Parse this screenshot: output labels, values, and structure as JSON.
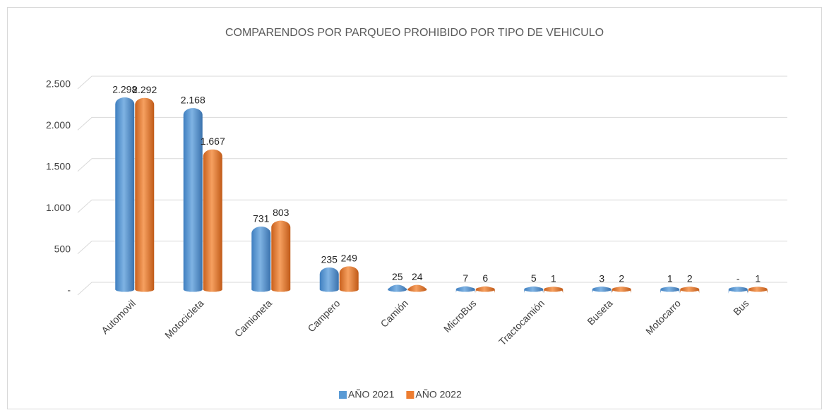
{
  "chart_data": {
    "type": "bar",
    "title": "COMPARENDOS POR PARQUEO PROHIBIDO POR TIPO DE VEHICULO",
    "categories": [
      "Automovil",
      "Motocicleta",
      "Camioneta",
      "Campero",
      "Camión",
      "MicroBus",
      "Tractocamión",
      "Buseta",
      "Motocarro",
      "Bus"
    ],
    "series": [
      {
        "name": "AÑO 2021",
        "color": "#5b9bd5",
        "values": [
          2298,
          2168,
          731,
          235,
          25,
          7,
          5,
          3,
          1,
          0
        ],
        "value_labels": [
          "2.298",
          "2.168",
          "731",
          "235",
          "25",
          "7",
          "5",
          "3",
          "1",
          "-"
        ]
      },
      {
        "name": "AÑO 2022",
        "color": "#ed7d31",
        "values": [
          2292,
          1667,
          803,
          249,
          24,
          6,
          1,
          2,
          2,
          1
        ],
        "value_labels": [
          "2.292",
          "1.667",
          "803",
          "249",
          "24",
          "6",
          "1",
          "2",
          "2",
          "1"
        ]
      }
    ],
    "ylim": [
      0,
      2500
    ],
    "yticks": [
      {
        "value": 0,
        "label": "-"
      },
      500,
      {
        "value": 1000,
        "label": "1.000"
      },
      {
        "value": 1500,
        "label": "1.500"
      },
      {
        "value": 2000,
        "label": "2.000"
      },
      {
        "value": 2500,
        "label": "2.500"
      }
    ],
    "grid": true,
    "legend": "bottom"
  }
}
